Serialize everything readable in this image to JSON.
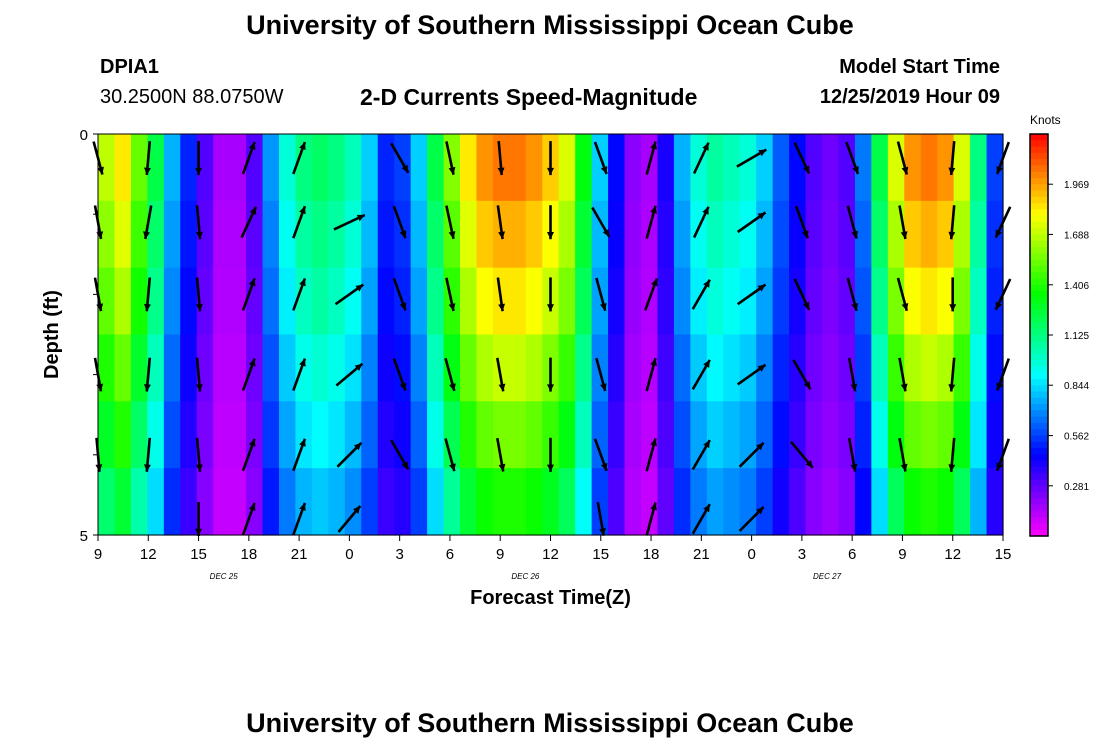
{
  "header": {
    "title": "University of Southern Mississippi Ocean Cube",
    "station": "DPIA1",
    "coords": "30.2500N 88.0750W",
    "subtitle": "2-D Currents Speed-Magnitude",
    "start_label": "Model Start Time",
    "start_time": "12/25/2019 Hour 09"
  },
  "footer": {
    "title": "University of Southern Mississippi Ocean Cube"
  },
  "chart_data": {
    "type": "heatmap",
    "xlabel": "Forecast Time(Z)",
    "ylabel": "Depth (ft)",
    "x_ticks": [
      "9",
      "12",
      "15",
      "18",
      "21",
      "0",
      "3",
      "6",
      "9",
      "12",
      "15",
      "18",
      "21",
      "0",
      "3",
      "6",
      "9",
      "12",
      "15"
    ],
    "date_labels": [
      {
        "text": "DEC 25",
        "after_tick": 2
      },
      {
        "text": "DEC 26",
        "after_tick": 8
      },
      {
        "text": "DEC 27",
        "after_tick": 14
      }
    ],
    "y_ticks": [
      "0",
      "5"
    ],
    "ylim": [
      0,
      5
    ],
    "colorbar": {
      "units": "Knots",
      "ticks": [
        "1.969",
        "1.688",
        "1.406",
        "1.125",
        "0.844",
        "0.562",
        "0.281"
      ],
      "range": [
        0,
        2.25
      ]
    },
    "hours": 54,
    "rows": 5,
    "speed_profile_knots": [
      1.65,
      1.8,
      1.5,
      1.2,
      0.75,
      0.5,
      0.3,
      0.15,
      0.15,
      0.3,
      0.7,
      0.95,
      1.1,
      1.15,
      1.1,
      1.0,
      0.8,
      0.5,
      0.55,
      0.8,
      1.2,
      1.55,
      1.8,
      1.95,
      2.0,
      2.0,
      1.95,
      1.85,
      1.7,
      1.3,
      0.8,
      0.45,
      0.2,
      0.15,
      0.4,
      0.75,
      0.95,
      1.05,
      1.0,
      0.95,
      0.8,
      0.6,
      0.45,
      0.3,
      0.25,
      0.3,
      0.65,
      1.2,
      1.7,
      1.95,
      2.0,
      1.95,
      1.7,
      1.1,
      0.55
    ],
    "speed_depth_factor": [
      1.02,
      0.97,
      0.92,
      0.85,
      0.78,
      0.7
    ],
    "arrow_rows": [
      {
        "depth": 0.3,
        "angles_deg": [
          165,
          185,
          180,
          20,
          20,
          null,
          150,
          168,
          175,
          180,
          160,
          15,
          25,
          60,
          155,
          160,
          165,
          185,
          200
        ]
      },
      {
        "depth": 1.1,
        "angles_deg": [
          170,
          190,
          175,
          25,
          20,
          65,
          160,
          168,
          172,
          180,
          150,
          15,
          25,
          55,
          160,
          165,
          170,
          185,
          205
        ]
      },
      {
        "depth": 2.0,
        "angles_deg": [
          170,
          185,
          175,
          20,
          20,
          55,
          160,
          168,
          172,
          180,
          165,
          20,
          30,
          55,
          155,
          165,
          165,
          180,
          205
        ]
      },
      {
        "depth": 3.0,
        "angles_deg": [
          170,
          185,
          175,
          20,
          20,
          50,
          160,
          165,
          170,
          180,
          165,
          15,
          30,
          55,
          150,
          170,
          170,
          185,
          200
        ]
      },
      {
        "depth": 4.0,
        "angles_deg": [
          175,
          185,
          175,
          20,
          20,
          45,
          150,
          165,
          170,
          180,
          160,
          15,
          30,
          45,
          140,
          170,
          170,
          185,
          200
        ]
      },
      {
        "depth": 4.8,
        "angles_deg": [
          null,
          null,
          180,
          20,
          20,
          40,
          null,
          null,
          null,
          null,
          170,
          15,
          30,
          45,
          null,
          null,
          null,
          null,
          null
        ]
      }
    ]
  }
}
